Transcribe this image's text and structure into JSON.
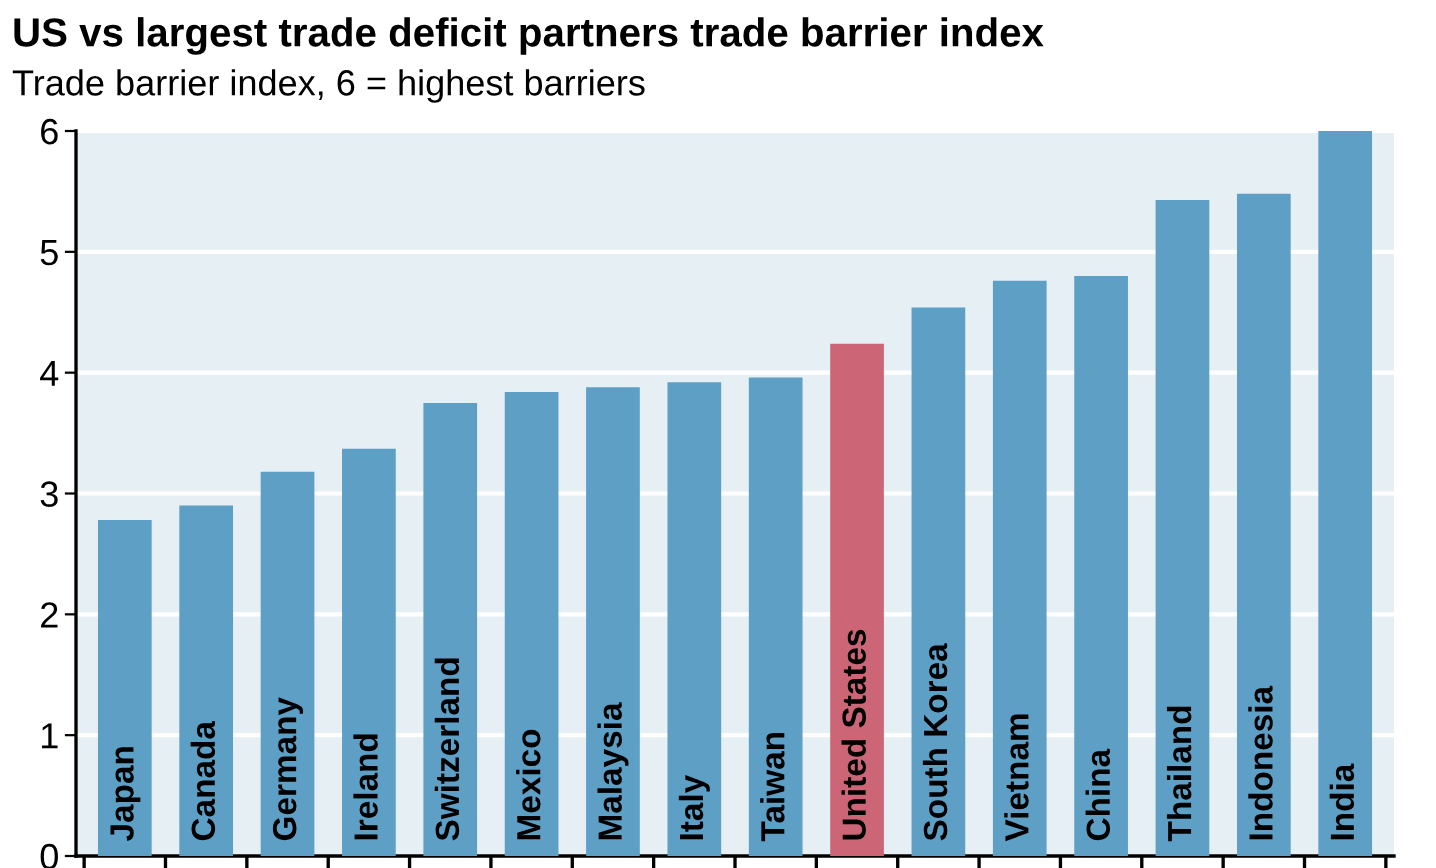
{
  "chart_data": {
    "type": "bar",
    "title": "US vs largest trade deficit partners trade barrier index",
    "subtitle": "Trade barrier index, 6 = highest barriers",
    "categories": [
      "Japan",
      "Canada",
      "Germany",
      "Ireland",
      "Switzerland",
      "Mexico",
      "Malaysia",
      "Italy",
      "Taiwan",
      "United States",
      "South Korea",
      "Vietnam",
      "China",
      "Thailand",
      "Indonesia",
      "India"
    ],
    "values": [
      2.78,
      2.9,
      3.18,
      3.37,
      3.75,
      3.84,
      3.88,
      3.92,
      3.96,
      4.24,
      4.54,
      4.76,
      4.8,
      5.43,
      5.48,
      6.0
    ],
    "colors": [
      "#5d9fc5",
      "#5d9fc5",
      "#5d9fc5",
      "#5d9fc5",
      "#5d9fc5",
      "#5d9fc5",
      "#5d9fc5",
      "#5d9fc5",
      "#5d9fc5",
      "#cc6677",
      "#5d9fc5",
      "#5d9fc5",
      "#5d9fc5",
      "#5d9fc5",
      "#5d9fc5",
      "#5d9fc5"
    ],
    "ylim": [
      0,
      6
    ],
    "yticks": [
      0,
      1,
      2,
      3,
      4,
      5,
      6
    ],
    "grid": "y"
  }
}
